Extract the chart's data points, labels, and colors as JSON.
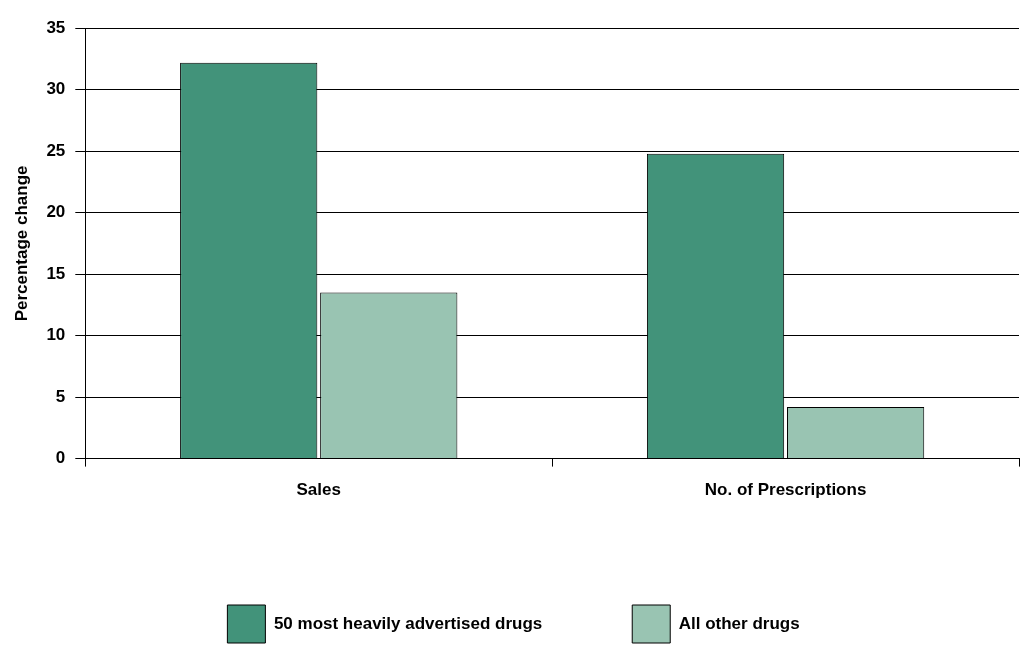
{
  "chart_data": {
    "type": "bar",
    "ylabel": "Percentage change",
    "categories": [
      "Sales",
      "No. of Prescriptions"
    ],
    "series": [
      {
        "name": "50 most heavily advertised drugs",
        "color": "#42937a",
        "values": [
          32.2,
          24.8
        ]
      },
      {
        "name": "All other drugs",
        "color": "#99c4b2",
        "values": [
          13.5,
          4.2
        ]
      }
    ],
    "ylim": [
      0,
      35
    ],
    "yticks": [
      0,
      5,
      10,
      15,
      20,
      25,
      30,
      35
    ],
    "grid": "y",
    "legend": "bottom"
  }
}
